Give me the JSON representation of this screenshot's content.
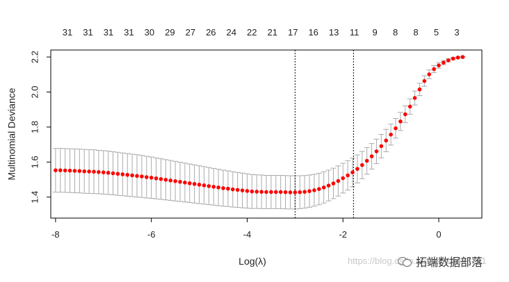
{
  "chart_data": {
    "type": "scatter",
    "xlabel": "Log(λ)",
    "ylabel": "Multinomial Deviance",
    "xlim": [
      -8.1,
      0.9
    ],
    "ylim": [
      1.28,
      2.24
    ],
    "x_ticks": [
      -8,
      -6,
      -4,
      -2,
      0
    ],
    "x_tick_labels": [
      "-8",
      "-6",
      "-4",
      "-2",
      "0"
    ],
    "y_ticks": [
      1.4,
      1.6,
      1.8,
      2.0,
      2.2
    ],
    "y_tick_labels": [
      "1.4",
      "1.6",
      "1.8",
      "2.0",
      "2.2"
    ],
    "top_labels": [
      "31",
      "31",
      "31",
      "31",
      "30",
      "29",
      "27",
      "26",
      "24",
      "22",
      "21",
      "17",
      "16",
      "13",
      "11",
      "9",
      "8",
      "8",
      "5",
      "3"
    ],
    "vlines": [
      -3.0,
      -1.78
    ],
    "point_color": "#ff0000",
    "errorbar_color": "#aaaaaa",
    "x": [
      -8.0,
      -7.9,
      -7.8,
      -7.7,
      -7.6,
      -7.5,
      -7.4,
      -7.3,
      -7.2,
      -7.1,
      -7.0,
      -6.9,
      -6.8,
      -6.7,
      -6.6,
      -6.5,
      -6.4,
      -6.3,
      -6.2,
      -6.1,
      -6.0,
      -5.9,
      -5.8,
      -5.7,
      -5.6,
      -5.5,
      -5.4,
      -5.3,
      -5.2,
      -5.1,
      -5.0,
      -4.9,
      -4.8,
      -4.7,
      -4.6,
      -4.5,
      -4.4,
      -4.3,
      -4.2,
      -4.1,
      -4.0,
      -3.9,
      -3.8,
      -3.7,
      -3.6,
      -3.5,
      -3.4,
      -3.3,
      -3.2,
      -3.1,
      -3.0,
      -2.9,
      -2.8,
      -2.7,
      -2.6,
      -2.5,
      -2.4,
      -2.3,
      -2.2,
      -2.1,
      -2.0,
      -1.9,
      -1.8,
      -1.7,
      -1.6,
      -1.5,
      -1.4,
      -1.3,
      -1.2,
      -1.1,
      -1.0,
      -0.9,
      -0.8,
      -0.7,
      -0.6,
      -0.5,
      -0.4,
      -0.3,
      -0.2,
      -0.1,
      0.0,
      0.1,
      0.2,
      0.3,
      0.4,
      0.5
    ],
    "y": [
      1.553,
      1.553,
      1.552,
      1.551,
      1.55,
      1.549,
      1.547,
      1.546,
      1.545,
      1.543,
      1.541,
      1.539,
      1.536,
      1.533,
      1.53,
      1.527,
      1.524,
      1.521,
      1.518,
      1.514,
      1.511,
      1.507,
      1.503,
      1.499,
      1.495,
      1.491,
      1.487,
      1.483,
      1.479,
      1.475,
      1.471,
      1.467,
      1.463,
      1.459,
      1.455,
      1.451,
      1.448,
      1.444,
      1.441,
      1.438,
      1.435,
      1.432,
      1.431,
      1.43,
      1.429,
      1.429,
      1.429,
      1.429,
      1.428,
      1.427,
      1.427,
      1.428,
      1.43,
      1.434,
      1.439,
      1.446,
      1.455,
      1.466,
      1.478,
      1.492,
      1.508,
      1.524,
      1.541,
      1.561,
      1.583,
      1.607,
      1.633,
      1.661,
      1.691,
      1.723,
      1.757,
      1.793,
      1.832,
      1.873,
      1.917,
      1.966,
      2.015,
      2.063,
      2.101,
      2.131,
      2.152,
      2.168,
      2.181,
      2.191,
      2.197,
      2.2
    ],
    "se": [
      0.125,
      0.125,
      0.125,
      0.125,
      0.125,
      0.125,
      0.125,
      0.125,
      0.125,
      0.124,
      0.124,
      0.124,
      0.123,
      0.123,
      0.122,
      0.122,
      0.121,
      0.121,
      0.12,
      0.119,
      0.118,
      0.117,
      0.116,
      0.115,
      0.114,
      0.113,
      0.112,
      0.111,
      0.11,
      0.109,
      0.108,
      0.107,
      0.106,
      0.105,
      0.104,
      0.103,
      0.102,
      0.101,
      0.1,
      0.099,
      0.098,
      0.097,
      0.096,
      0.096,
      0.095,
      0.095,
      0.095,
      0.095,
      0.095,
      0.095,
      0.095,
      0.094,
      0.093,
      0.092,
      0.091,
      0.09,
      0.089,
      0.088,
      0.087,
      0.086,
      0.085,
      0.084,
      0.082,
      0.08,
      0.078,
      0.076,
      0.073,
      0.07,
      0.067,
      0.064,
      0.06,
      0.056,
      0.052,
      0.048,
      0.044,
      0.04,
      0.035,
      0.03,
      0.025,
      0.02,
      0.016,
      0.012,
      0.009,
      0.006,
      0.004,
      0.003
    ]
  },
  "watermark": "https://blog.csdn.net/qq_19600291",
  "brand": "拓端数据部落"
}
